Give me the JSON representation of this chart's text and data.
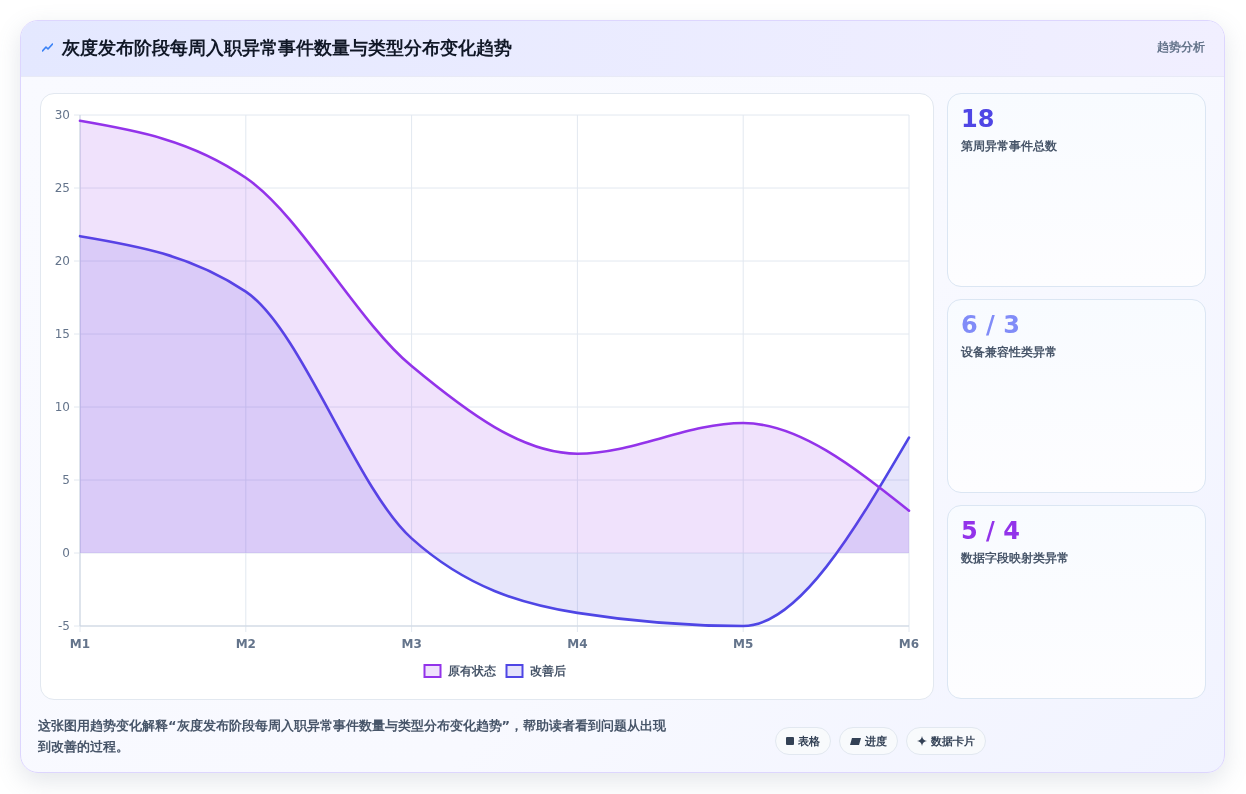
{
  "chart_data": [
    {
      "type": "area",
      "title": "灰度发布阶段每周入职异常事件数量与类型分布变化趋势",
      "categories": [
        "M1",
        "M2",
        "M3",
        "M4",
        "M5",
        "M6"
      ],
      "series": [
        {
          "name": "原有状态",
          "color": "#9333ea",
          "values": [
            29.6,
            25.7,
            12.8,
            6.8,
            8.9,
            2.9
          ]
        },
        {
          "name": "改善后",
          "color": "#4f46e5",
          "values": [
            21.7,
            17.9,
            1.0,
            -4.1,
            -5.0,
            7.9
          ]
        }
      ],
      "ylim": [
        -5,
        30
      ],
      "yticks": [
        -5,
        0,
        5,
        10,
        15,
        20,
        25,
        30
      ],
      "grid": true,
      "legend": "bottom",
      "annotations": [
        "趋势分析",
        "这张图用趋势变化解释“灰度发布阶段每周入职异常事件数量与类型分布变化趋势”，帮助读者看到问题从出现到改善的过程。",
        "表格",
        "进度",
        "数据卡片"
      ]
    },
    {
      "type": "other",
      "title": "18",
      "subtitle": "第周异常事件总数",
      "color": "#4f46e5"
    },
    {
      "type": "other",
      "title": "6 / 3",
      "subtitle": "设备兼容性类异常",
      "color": "#818cf8"
    },
    {
      "type": "other",
      "title": "5 / 4",
      "subtitle": "数据字段映射类异常",
      "color": "#9333ea"
    }
  ]
}
